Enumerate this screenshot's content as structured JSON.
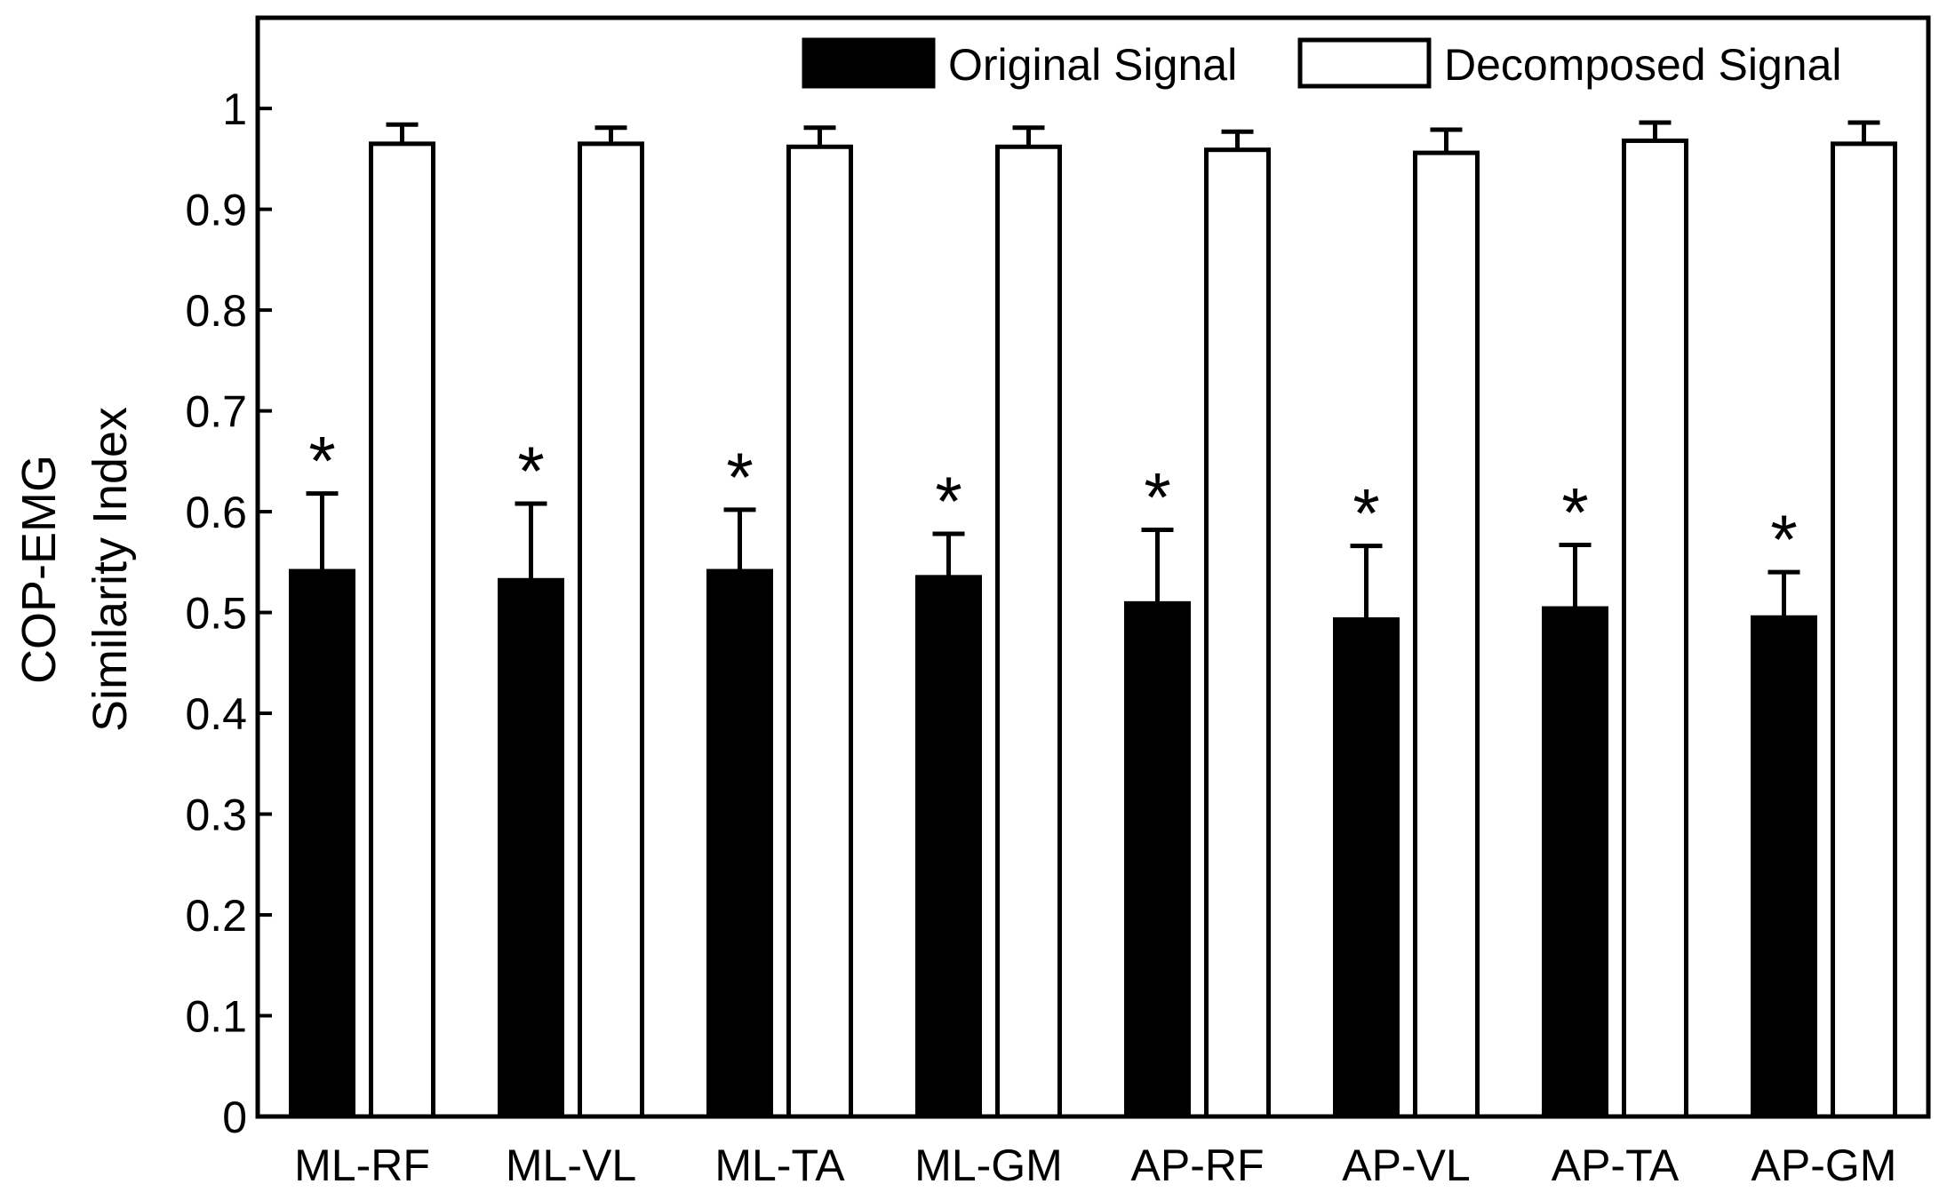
{
  "chart_data": {
    "type": "bar",
    "title": "",
    "xlabel": "",
    "ylabel_lines": [
      "COP-EMG",
      "Similarity Index"
    ],
    "ylim": [
      0,
      1.09
    ],
    "yticks": [
      0,
      0.1,
      0.2,
      0.3,
      0.4,
      0.5,
      0.6,
      0.7,
      0.8,
      0.9,
      1
    ],
    "ytick_labels": [
      "0",
      "0.1",
      "0.2",
      "0.3",
      "0.4",
      "0.5",
      "0.6",
      "0.7",
      "0.8",
      "0.9",
      "1"
    ],
    "grid": false,
    "legend_position": "top-right",
    "categories": [
      "ML-RF",
      "ML-VL",
      "ML-TA",
      "ML-GM",
      "AP-RF",
      "AP-VL",
      "AP-TA",
      "AP-GM"
    ],
    "series": [
      {
        "name": "Original Signal",
        "color": "#000000",
        "values": [
          0.541,
          0.532,
          0.541,
          0.535,
          0.509,
          0.493,
          0.504,
          0.495
        ],
        "errors": [
          0.077,
          0.076,
          0.061,
          0.043,
          0.073,
          0.073,
          0.063,
          0.045
        ]
      },
      {
        "name": "Decomposed Signal",
        "color": "#ffffff",
        "values": [
          0.965,
          0.965,
          0.962,
          0.962,
          0.959,
          0.956,
          0.968,
          0.965
        ],
        "errors": [
          0.019,
          0.016,
          0.019,
          0.019,
          0.018,
          0.023,
          0.018,
          0.021
        ]
      }
    ],
    "annotations": {
      "significance_marker": "*",
      "applies_to": "Original Signal",
      "categories": [
        "ML-RF",
        "ML-VL",
        "ML-TA",
        "ML-GM",
        "AP-RF",
        "AP-VL",
        "AP-TA",
        "AP-GM"
      ]
    }
  }
}
